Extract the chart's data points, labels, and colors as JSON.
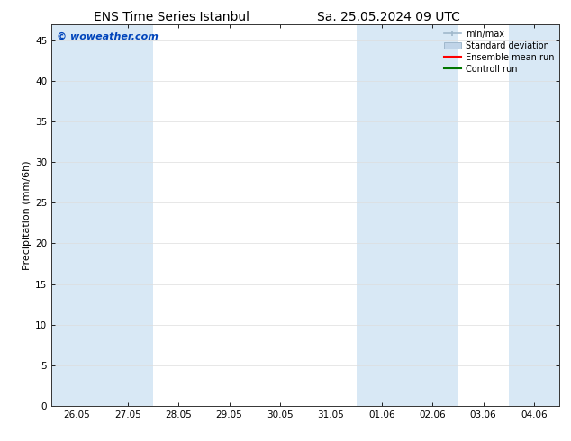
{
  "title_left": "ENS Time Series Istanbul",
  "title_right": "Sa. 25.05.2024 09 UTC",
  "ylabel": "Precipitation (mm/6h)",
  "watermark": "© woweather.com",
  "watermark_color": "#0044bb",
  "ylim": [
    0,
    47
  ],
  "yticks": [
    0,
    5,
    10,
    15,
    20,
    25,
    30,
    35,
    40,
    45
  ],
  "xtick_labels": [
    "26.05",
    "27.05",
    "28.05",
    "29.05",
    "30.05",
    "31.05",
    "01.06",
    "02.06",
    "03.06",
    "04.06"
  ],
  "shaded_columns": [
    0,
    1,
    6,
    7,
    9
  ],
  "shaded_color": "#d8e8f5",
  "background_color": "#ffffff",
  "legend_entries": [
    "min/max",
    "Standard deviation",
    "Ensemble mean run",
    "Controll run"
  ],
  "minmax_color": "#a0b8cc",
  "stddev_color": "#c0d4e8",
  "ensemble_color": "#ff0000",
  "control_color": "#007700",
  "grid_color": "#dddddd",
  "title_fontsize": 10,
  "tick_fontsize": 7.5,
  "ylabel_fontsize": 8,
  "legend_fontsize": 7
}
